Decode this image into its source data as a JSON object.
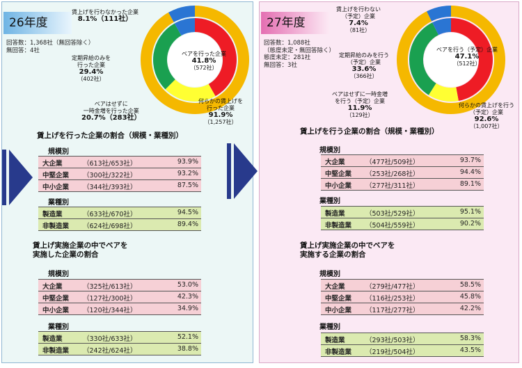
{
  "colors": {
    "yellow": "#f5b800",
    "red": "#ee1c25",
    "green": "#1aa050",
    "blue": "#2a75d3",
    "lightyellow": "#ffff33",
    "navy": "#283a8c"
  },
  "y26": {
    "year": "26年度",
    "respondents": [
      "回答数：1,368社（無回答除く）",
      "無回答：4社"
    ],
    "labels": {
      "no_raise": [
        "賃上げを行わなかった企業",
        "8.1%（111社）"
      ],
      "regular_only": [
        "定期昇給のみを",
        "行った企業",
        "29.4%",
        "（402社）"
      ],
      "bonus": [
        "ベアはせずに",
        "一時金増を行った企業",
        "20.7%（283社）"
      ],
      "base_up": [
        "ベアを行った企業",
        "41.8%",
        "（572社）"
      ],
      "any_raise": [
        "何らかの賃上げを",
        "行った企業",
        "91.9%",
        "（1,257社）"
      ]
    },
    "ratio_title": "賃上げを行った企業の割合（規模・業種別）",
    "base_title": [
      "賃上げ実施企業の中でベアを",
      "実施した企業の割合"
    ],
    "scale_label": "規模別",
    "industry_label": "業種別",
    "ratio_scale": [
      {
        "name": "大企業",
        "count": "（613社/653社）",
        "pct": "93.9%"
      },
      {
        "name": "中堅企業",
        "count": "（300社/322社）",
        "pct": "93.2%"
      },
      {
        "name": "中小企業",
        "count": "（344社/393社）",
        "pct": "87.5%"
      }
    ],
    "ratio_industry": [
      {
        "name": "製造業",
        "count": "（633社/670社）",
        "pct": "94.5%"
      },
      {
        "name": "非製造業",
        "count": "（624社/698社）",
        "pct": "89.4%"
      }
    ],
    "base_scale": [
      {
        "name": "大企業",
        "count": "（325社/613社）",
        "pct": "53.0%"
      },
      {
        "name": "中堅企業",
        "count": "（127社/300社）",
        "pct": "42.3%"
      },
      {
        "name": "中小企業",
        "count": "（120社/344社）",
        "pct": "34.9%"
      }
    ],
    "base_industry": [
      {
        "name": "製造業",
        "count": "（330社/633社）",
        "pct": "52.1%"
      },
      {
        "name": "非製造業",
        "count": "（242社/624社）",
        "pct": "38.8%"
      }
    ]
  },
  "y27": {
    "year": "27年度",
    "respondents": [
      "回答数：1,088社",
      "（態度未定・無回答除く）",
      "態度未定：281社",
      "無回答：3社"
    ],
    "labels": {
      "no_raise": [
        "賃上げを行わない",
        "（予定）企業",
        "7.4%",
        "（81社）"
      ],
      "regular_only": [
        "定期昇給のみを行う",
        "（予定）企業",
        "33.6%",
        "（366社）"
      ],
      "bonus": [
        "ベアはせずに一時金増",
        "を行う（予定）企業",
        "11.9%",
        "（129社）"
      ],
      "base_up": [
        "ベアを行う（予定）企業",
        "47.1%",
        "（512社）"
      ],
      "any_raise": [
        "何らかの賃上げを行う",
        "（予定）企業",
        "92.6%",
        "（1,007社）"
      ]
    },
    "ratio_title": "賃上げを行う企業の割合（規模・業種別）",
    "base_title": [
      "賃上げ実施企業の中でベアを",
      "実施する企業の割合"
    ],
    "scale_label": "規模別",
    "industry_label": "業種別",
    "ratio_scale": [
      {
        "name": "大企業",
        "count": "（477社/509社）",
        "pct": "93.7%"
      },
      {
        "name": "中堅企業",
        "count": "（253社/268社）",
        "pct": "94.4%"
      },
      {
        "name": "中小企業",
        "count": "（277社/311社）",
        "pct": "89.1%"
      }
    ],
    "ratio_industry": [
      {
        "name": "製造業",
        "count": "（503社/529社）",
        "pct": "95.1%"
      },
      {
        "name": "非製造業",
        "count": "（504社/559社）",
        "pct": "90.2%"
      }
    ],
    "base_scale": [
      {
        "name": "大企業",
        "count": "（279社/477社）",
        "pct": "58.5%"
      },
      {
        "name": "中堅企業",
        "count": "（116社/253社）",
        "pct": "45.8%"
      },
      {
        "name": "中小企業",
        "count": "（117社/277社）",
        "pct": "42.2%"
      }
    ],
    "base_industry": [
      {
        "name": "製造業",
        "count": "（293社/503社）",
        "pct": "58.3%"
      },
      {
        "name": "非製造業",
        "count": "（219社/504社）",
        "pct": "43.5%"
      }
    ]
  },
  "chart_data": [
    {
      "type": "pie",
      "inner_ring": [
        {
          "label": "ベアを行った企業",
          "value": 41.8
        },
        {
          "label": "ベアはせずに一時金増を行った企業",
          "value": 20.7
        },
        {
          "label": "定期昇給のみを行った企業",
          "value": 29.4
        },
        {
          "label": "賃上げを行わなかった企業",
          "value": 8.1
        }
      ],
      "outer_ring": [
        {
          "label": "何らかの賃上げを行った企業",
          "value": 91.9
        },
        {
          "label": "賃上げを行わなかった企業",
          "value": 8.1
        }
      ]
    },
    {
      "type": "pie",
      "inner_ring": [
        {
          "label": "ベアを行う（予定）企業",
          "value": 47.1
        },
        {
          "label": "ベアはせずに一時金増を行う（予定）企業",
          "value": 11.9
        },
        {
          "label": "定期昇給のみを行う（予定）企業",
          "value": 33.6
        },
        {
          "label": "賃上げを行わない（予定）企業",
          "value": 7.4
        }
      ],
      "outer_ring": [
        {
          "label": "何らかの賃上げを行う（予定）企業",
          "value": 92.6
        },
        {
          "label": "賃上げを行わない（予定）企業",
          "value": 7.4
        }
      ]
    }
  ]
}
